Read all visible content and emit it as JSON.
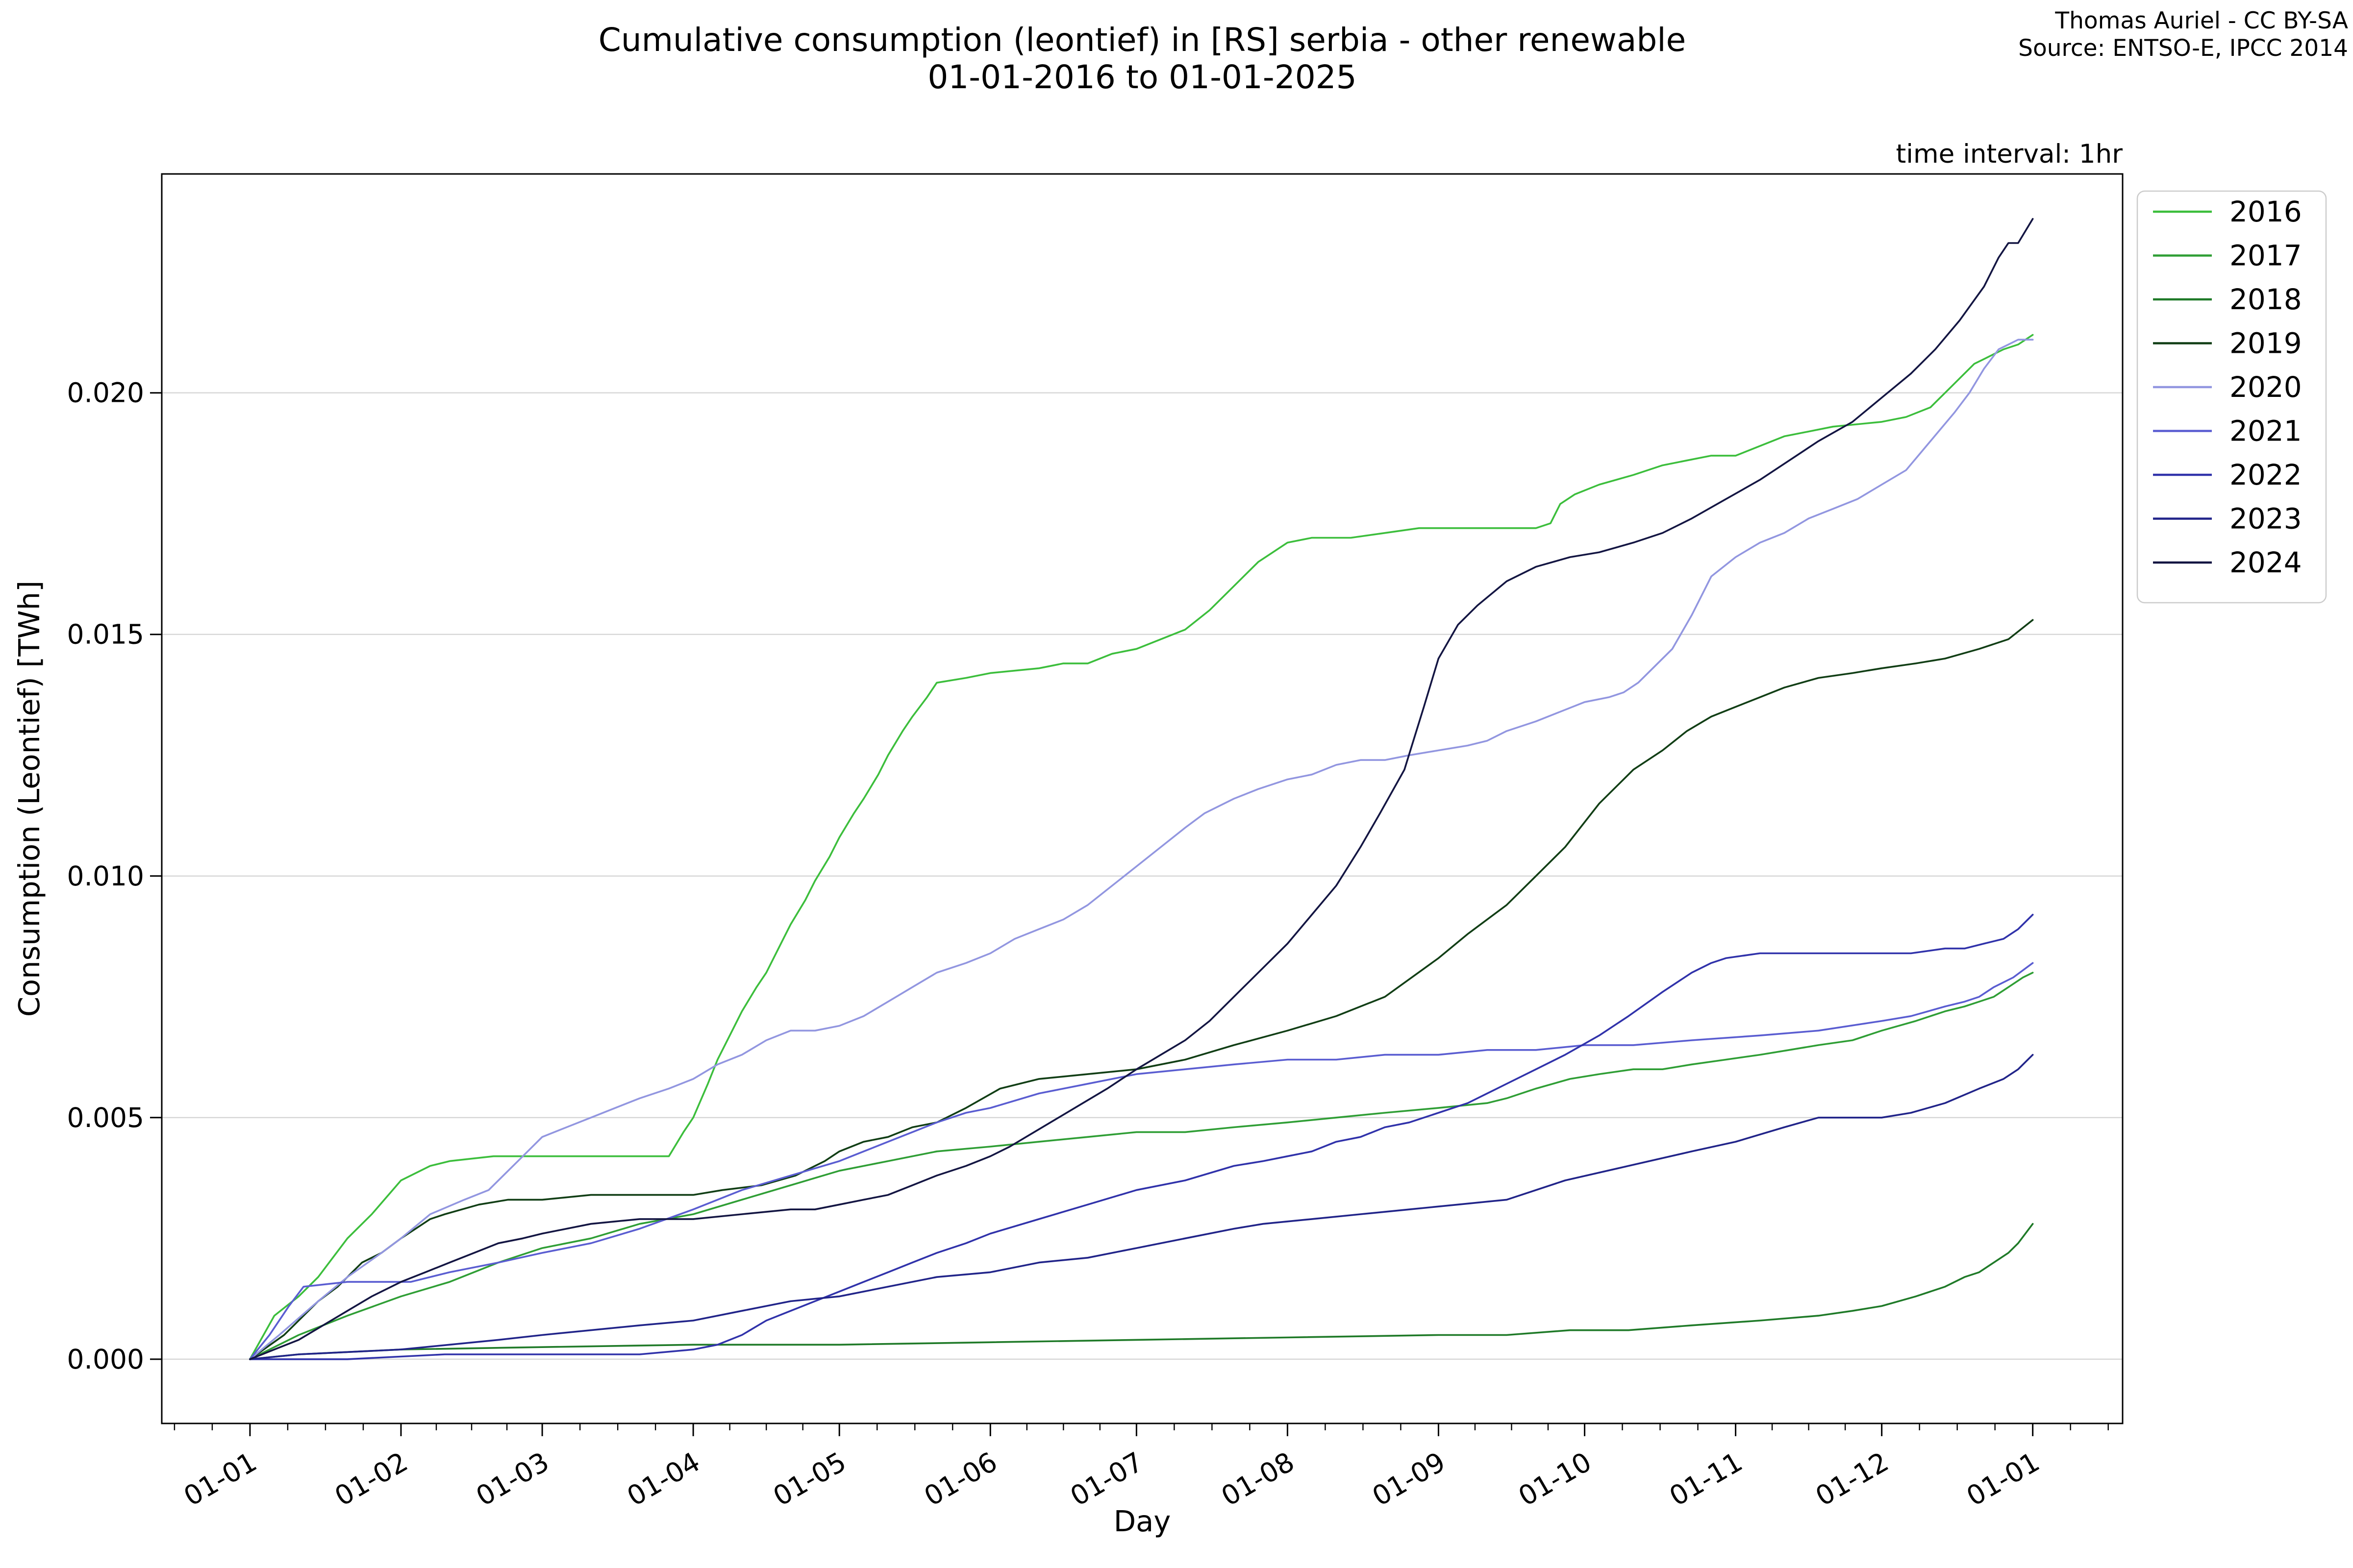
{
  "header": {
    "title_line1": "Cumulative consumption (leontief) in [RS] serbia - other renewable",
    "title_line2": "01-01-2016 to 01-01-2025",
    "credit_line1": "Thomas Auriel - CC BY-SA",
    "credit_line2": "Source: ENTSO-E, IPCC 2014",
    "time_interval_note": "time interval: 1hr"
  },
  "colors": {
    "background": "#ffffff",
    "grid": "#d6d6d6",
    "frame": "#000000",
    "text": "#000000",
    "legend_border": "#cccccc"
  },
  "chart_data": {
    "type": "line",
    "title": "Cumulative consumption (leontief) in [RS] serbia - other renewable 01-01-2016 to 01-01-2025",
    "xlabel": "Day",
    "ylabel": "Consumption (Leontief) [TWh]",
    "x_unit": "day of year (01-01 = day 0, 1hr cumulative data plotted per year)",
    "xlim_days": [
      -18.11,
      384.45
    ],
    "ylim": [
      -0.00133,
      0.02453
    ],
    "grid": "horizontal",
    "legend_position": "right",
    "x_tick_days": [
      0,
      31,
      60,
      91,
      121,
      152,
      182,
      213,
      244,
      274,
      305,
      335,
      366
    ],
    "x_tick_labels": [
      "01-01",
      "01-02",
      "01-03",
      "01-04",
      "01-05",
      "01-06",
      "01-07",
      "01-08",
      "01-09",
      "01-10",
      "01-11",
      "01-12",
      "01-01"
    ],
    "y_tick_values": [
      0.0,
      0.005,
      0.01,
      0.015,
      0.02
    ],
    "y_tick_labels": [
      "0.000",
      "0.005",
      "0.010",
      "0.015",
      "0.020"
    ],
    "series": [
      {
        "name": "2016",
        "color": "#3cbe3c",
        "x": [
          0,
          5,
          10,
          14,
          20,
          25,
          31,
          37,
          41,
          50,
          65,
          80,
          86,
          89,
          91,
          94,
          96,
          99,
          101,
          104,
          106,
          109,
          111,
          114,
          116,
          119,
          121,
          124,
          126,
          129,
          131,
          134,
          136,
          139,
          141,
          147,
          152,
          157,
          162,
          167,
          172,
          177,
          182,
          187,
          192,
          197,
          202,
          207,
          213,
          218,
          226,
          233,
          240,
          250,
          258,
          264,
          267,
          269,
          272,
          277,
          284,
          290,
          295,
          300,
          305,
          310,
          315,
          320,
          325,
          335,
          340,
          345,
          350,
          354,
          356,
          360,
          363,
          366
        ],
        "y": [
          0,
          0.0009,
          0.0013,
          0.0017,
          0.0025,
          0.003,
          0.0037,
          0.004,
          0.0041,
          0.0042,
          0.0042,
          0.0042,
          0.0042,
          0.0047,
          0.005,
          0.0057,
          0.0062,
          0.0068,
          0.0072,
          0.0077,
          0.008,
          0.0086,
          0.009,
          0.0095,
          0.0099,
          0.0104,
          0.0108,
          0.0113,
          0.0116,
          0.0121,
          0.0125,
          0.013,
          0.0133,
          0.0137,
          0.014,
          0.0141,
          0.0142,
          0.01425,
          0.0143,
          0.0144,
          0.0144,
          0.0146,
          0.0147,
          0.0149,
          0.0151,
          0.0155,
          0.016,
          0.0165,
          0.0169,
          0.017,
          0.017,
          0.0171,
          0.0172,
          0.0172,
          0.0172,
          0.0172,
          0.0173,
          0.0177,
          0.0179,
          0.0181,
          0.0183,
          0.0185,
          0.0186,
          0.0187,
          0.0187,
          0.0189,
          0.0191,
          0.0192,
          0.0193,
          0.0194,
          0.0195,
          0.0197,
          0.0202,
          0.0206,
          0.0207,
          0.0209,
          0.021,
          0.0212
        ]
      },
      {
        "name": "2017",
        "color": "#2f9e35",
        "x": [
          0,
          10,
          20,
          31,
          41,
          51,
          60,
          70,
          80,
          91,
          101,
          111,
          121,
          131,
          141,
          152,
          162,
          172,
          182,
          192,
          202,
          213,
          223,
          233,
          244,
          254,
          258,
          264,
          271,
          277,
          284,
          290,
          296,
          303,
          310,
          316,
          322,
          329,
          335,
          342,
          348,
          352,
          355,
          358,
          361,
          364,
          366
        ],
        "y": [
          0,
          0.0005,
          0.0009,
          0.0013,
          0.0016,
          0.002,
          0.0023,
          0.0025,
          0.0028,
          0.003,
          0.0033,
          0.0036,
          0.0039,
          0.0041,
          0.0043,
          0.0044,
          0.0045,
          0.0046,
          0.0047,
          0.0047,
          0.0048,
          0.0049,
          0.005,
          0.0051,
          0.0052,
          0.0053,
          0.0054,
          0.0056,
          0.0058,
          0.0059,
          0.006,
          0.006,
          0.0061,
          0.0062,
          0.0063,
          0.0064,
          0.0065,
          0.0066,
          0.0068,
          0.007,
          0.0072,
          0.0073,
          0.0074,
          0.0075,
          0.0077,
          0.0079,
          0.008
        ]
      },
      {
        "name": "2018",
        "color": "#1f7a28",
        "x": [
          0,
          10,
          31,
          60,
          91,
          121,
          152,
          182,
          213,
          244,
          258,
          271,
          283,
          296,
          310,
          322,
          329,
          335,
          342,
          348,
          352,
          355,
          358,
          361,
          363,
          366
        ],
        "y": [
          0,
          0.0001,
          0.0002,
          0.00025,
          0.0003,
          0.0003,
          0.00035,
          0.0004,
          0.00045,
          0.0005,
          0.0005,
          0.0006,
          0.0006,
          0.0007,
          0.0008,
          0.0009,
          0.001,
          0.0011,
          0.0013,
          0.0015,
          0.0017,
          0.0018,
          0.002,
          0.0022,
          0.0024,
          0.0028
        ]
      },
      {
        "name": "2019",
        "color": "#113e15",
        "x": [
          0,
          7,
          14,
          18,
          23,
          27,
          31,
          34,
          37,
          40,
          47,
          53,
          60,
          70,
          80,
          91,
          97,
          105,
          112,
          118,
          121,
          126,
          131,
          136,
          141,
          147,
          154,
          162,
          172,
          182,
          192,
          202,
          213,
          223,
          233,
          244,
          250,
          258,
          264,
          270,
          277,
          284,
          290,
          295,
          300,
          305,
          310,
          315,
          322,
          329,
          335,
          342,
          348,
          355,
          361,
          366
        ],
        "y": [
          0,
          0.0005,
          0.0012,
          0.0015,
          0.002,
          0.0022,
          0.0025,
          0.0027,
          0.0029,
          0.003,
          0.0032,
          0.0033,
          0.0033,
          0.0034,
          0.0034,
          0.0034,
          0.0035,
          0.0036,
          0.0038,
          0.0041,
          0.0043,
          0.0045,
          0.0046,
          0.0048,
          0.0049,
          0.0052,
          0.0056,
          0.0058,
          0.0059,
          0.006,
          0.0062,
          0.0065,
          0.0068,
          0.0071,
          0.0075,
          0.0083,
          0.0088,
          0.0094,
          0.01,
          0.0106,
          0.0115,
          0.0122,
          0.0126,
          0.013,
          0.0133,
          0.0135,
          0.0137,
          0.0139,
          0.0141,
          0.0142,
          0.0143,
          0.0144,
          0.0145,
          0.0147,
          0.0149,
          0.0153
        ]
      },
      {
        "name": "2020",
        "color": "#9296e0",
        "x": [
          0,
          6,
          14,
          20,
          27,
          31,
          37,
          44,
          49,
          55,
          58,
          60,
          65,
          70,
          75,
          80,
          86,
          91,
          96,
          101,
          106,
          111,
          116,
          121,
          126,
          131,
          136,
          141,
          147,
          152,
          157,
          162,
          167,
          172,
          177,
          182,
          187,
          192,
          196,
          202,
          207,
          213,
          218,
          223,
          228,
          233,
          238,
          244,
          250,
          254,
          258,
          264,
          269,
          274,
          279,
          282,
          285,
          288,
          292,
          296,
          300,
          305,
          310,
          315,
          320,
          325,
          330,
          335,
          340,
          345,
          350,
          353,
          356,
          359,
          361,
          363,
          366
        ],
        "y": [
          0,
          0.0005,
          0.0012,
          0.0017,
          0.0022,
          0.0025,
          0.003,
          0.0033,
          0.0035,
          0.0041,
          0.0044,
          0.0046,
          0.0048,
          0.005,
          0.0052,
          0.0054,
          0.0056,
          0.0058,
          0.0061,
          0.0063,
          0.0066,
          0.0068,
          0.0068,
          0.0069,
          0.0071,
          0.0074,
          0.0077,
          0.008,
          0.0082,
          0.0084,
          0.0087,
          0.0089,
          0.0091,
          0.0094,
          0.0098,
          0.0102,
          0.0106,
          0.011,
          0.0113,
          0.0116,
          0.0118,
          0.012,
          0.0121,
          0.0123,
          0.0124,
          0.0124,
          0.0125,
          0.0126,
          0.0127,
          0.0128,
          0.013,
          0.0132,
          0.0134,
          0.0136,
          0.0137,
          0.0138,
          0.014,
          0.0143,
          0.0147,
          0.0154,
          0.0162,
          0.0166,
          0.0169,
          0.0171,
          0.0174,
          0.0176,
          0.0178,
          0.0181,
          0.0184,
          0.019,
          0.0196,
          0.02,
          0.0205,
          0.0209,
          0.021,
          0.0211,
          0.0211
        ]
      },
      {
        "name": "2021",
        "color": "#5a5dd1",
        "x": [
          0,
          4,
          8,
          11,
          20,
          33,
          41,
          51,
          60,
          70,
          80,
          91,
          101,
          111,
          121,
          126,
          131,
          136,
          141,
          147,
          152,
          162,
          172,
          182,
          192,
          202,
          213,
          223,
          233,
          244,
          254,
          264,
          274,
          284,
          296,
          310,
          322,
          335,
          341,
          348,
          352,
          355,
          358,
          362,
          366
        ],
        "y": [
          0,
          0.0005,
          0.0011,
          0.0015,
          0.0016,
          0.0016,
          0.0018,
          0.002,
          0.0022,
          0.0024,
          0.0027,
          0.0031,
          0.0035,
          0.0038,
          0.0041,
          0.0043,
          0.0045,
          0.0047,
          0.0049,
          0.0051,
          0.0052,
          0.0055,
          0.0057,
          0.0059,
          0.006,
          0.0061,
          0.0062,
          0.0062,
          0.0063,
          0.0063,
          0.0064,
          0.0064,
          0.0065,
          0.0065,
          0.0066,
          0.0067,
          0.0068,
          0.007,
          0.0071,
          0.0073,
          0.0074,
          0.0075,
          0.0077,
          0.0079,
          0.0082
        ]
      },
      {
        "name": "2022",
        "color": "#3032aa",
        "x": [
          0,
          20,
          40,
          60,
          80,
          91,
          96,
          101,
          106,
          111,
          116,
          121,
          126,
          131,
          136,
          141,
          147,
          152,
          162,
          172,
          182,
          192,
          202,
          208,
          213,
          218,
          223,
          228,
          233,
          238,
          244,
          250,
          254,
          258,
          264,
          270,
          277,
          283,
          290,
          296,
          300,
          303,
          310,
          322,
          335,
          341,
          348,
          352,
          356,
          360,
          363,
          366
        ],
        "y": [
          0,
          0.0,
          0.0001,
          0.0001,
          0.0001,
          0.0002,
          0.0003,
          0.0005,
          0.0008,
          0.001,
          0.0012,
          0.0014,
          0.0016,
          0.0018,
          0.002,
          0.0022,
          0.0024,
          0.0026,
          0.0029,
          0.0032,
          0.0035,
          0.0037,
          0.004,
          0.0041,
          0.0042,
          0.0043,
          0.0045,
          0.0046,
          0.0048,
          0.0049,
          0.0051,
          0.0053,
          0.0055,
          0.0057,
          0.006,
          0.0063,
          0.0067,
          0.0071,
          0.0076,
          0.008,
          0.0082,
          0.0083,
          0.0084,
          0.0084,
          0.0084,
          0.0084,
          0.0085,
          0.0085,
          0.0086,
          0.0087,
          0.0089,
          0.0092
        ]
      },
      {
        "name": "2023",
        "color": "#212489",
        "x": [
          0,
          10,
          31,
          51,
          60,
          80,
          91,
          101,
          111,
          121,
          131,
          141,
          152,
          162,
          172,
          182,
          192,
          202,
          208,
          218,
          228,
          238,
          248,
          258,
          270,
          283,
          296,
          305,
          315,
          322,
          335,
          341,
          348,
          355,
          360,
          363,
          366
        ],
        "y": [
          0,
          0.0001,
          0.0002,
          0.0004,
          0.0005,
          0.0007,
          0.0008,
          0.001,
          0.0012,
          0.0013,
          0.0015,
          0.0017,
          0.0018,
          0.002,
          0.0021,
          0.0023,
          0.0025,
          0.0027,
          0.0028,
          0.0029,
          0.003,
          0.0031,
          0.0032,
          0.0033,
          0.0037,
          0.004,
          0.0043,
          0.0045,
          0.0048,
          0.005,
          0.005,
          0.0051,
          0.0053,
          0.0056,
          0.0058,
          0.006,
          0.0063
        ]
      },
      {
        "name": "2024",
        "color": "#131542",
        "x": [
          0,
          5,
          10,
          15,
          20,
          25,
          31,
          36,
          41,
          46,
          51,
          56,
          60,
          65,
          70,
          80,
          91,
          101,
          111,
          116,
          121,
          126,
          131,
          136,
          141,
          147,
          152,
          156,
          161,
          166,
          171,
          176,
          182,
          187,
          192,
          197,
          203,
          208,
          213,
          218,
          223,
          228,
          232,
          237,
          241,
          244,
          248,
          252,
          258,
          264,
          271,
          277,
          284,
          290,
          296,
          303,
          310,
          316,
          322,
          329,
          335,
          341,
          346,
          351,
          356,
          359,
          361,
          363,
          366
        ],
        "y": [
          0,
          0.0002,
          0.0004,
          0.0007,
          0.001,
          0.0013,
          0.0016,
          0.0018,
          0.002,
          0.0022,
          0.0024,
          0.0025,
          0.0026,
          0.0027,
          0.0028,
          0.0029,
          0.0029,
          0.003,
          0.0031,
          0.0031,
          0.0032,
          0.0033,
          0.0034,
          0.0036,
          0.0038,
          0.004,
          0.0042,
          0.0044,
          0.0047,
          0.005,
          0.0053,
          0.0056,
          0.006,
          0.0063,
          0.0066,
          0.007,
          0.0076,
          0.0081,
          0.0086,
          0.0092,
          0.0098,
          0.0106,
          0.0113,
          0.0122,
          0.0135,
          0.0145,
          0.0152,
          0.0156,
          0.0161,
          0.0164,
          0.0166,
          0.0167,
          0.0169,
          0.0171,
          0.0174,
          0.0178,
          0.0182,
          0.0186,
          0.019,
          0.0194,
          0.0199,
          0.0204,
          0.0209,
          0.0215,
          0.0222,
          0.0228,
          0.0231,
          0.0231,
          0.0236
        ]
      }
    ]
  }
}
